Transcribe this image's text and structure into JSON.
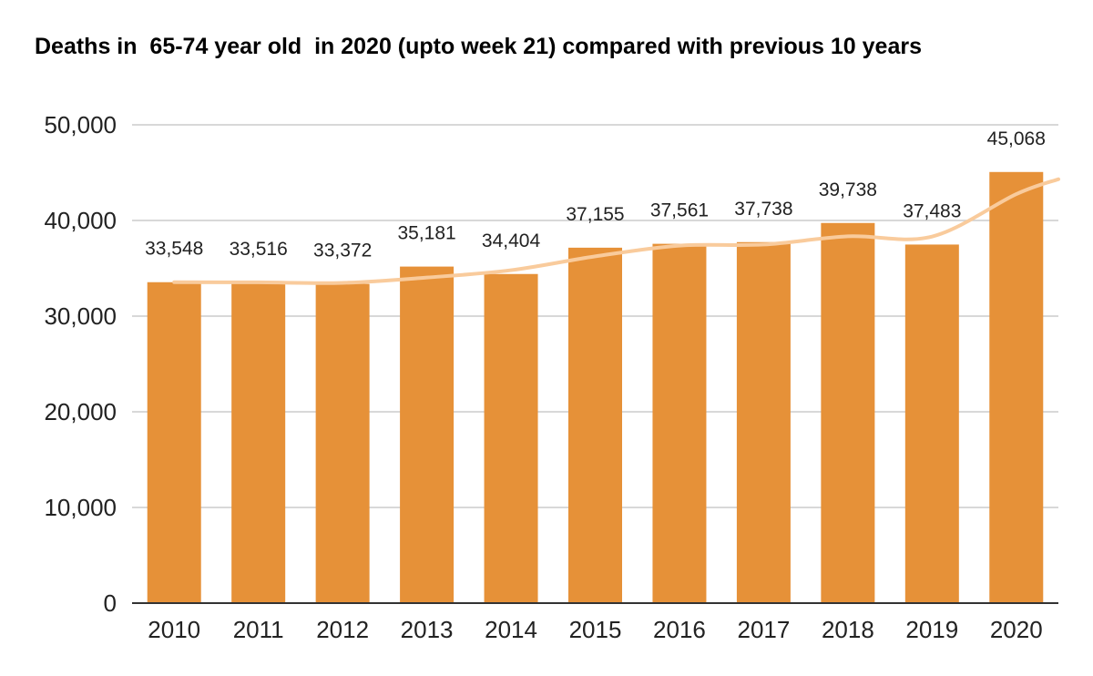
{
  "chart_data": {
    "type": "bar",
    "title": "Deaths in  65-74 year old  in 2020 (upto week 21) compared with previous 10 years",
    "xlabel": "",
    "ylabel": "",
    "categories": [
      "2010",
      "2011",
      "2012",
      "2013",
      "2014",
      "2015",
      "2016",
      "2017",
      "2018",
      "2019",
      "2020"
    ],
    "values": [
      33548,
      33516,
      33372,
      35181,
      34404,
      37155,
      37561,
      37738,
      39738,
      37483,
      45068
    ],
    "data_labels": [
      "33,548",
      "33,516",
      "33,372",
      "35,181",
      "34,404",
      "37,155",
      "37,561",
      "37,738",
      "39,738",
      "37,483",
      "45,068"
    ],
    "trendline": [
      33548,
      33532,
      33479,
      34034,
      34804,
      36247,
      37373,
      37485,
      38346,
      38320,
      42759
    ],
    "ylim": [
      0,
      50000
    ],
    "yticks": [
      0,
      10000,
      20000,
      30000,
      40000,
      50000
    ],
    "ytick_labels": [
      "0",
      "10,000",
      "20,000",
      "30,000",
      "40,000",
      "50,000"
    ],
    "grid": true,
    "legend": "none",
    "colors": {
      "bar": "#e69138",
      "trendline": "#f9cb9c",
      "grid": "#cccccc",
      "axis": "#333333"
    }
  }
}
